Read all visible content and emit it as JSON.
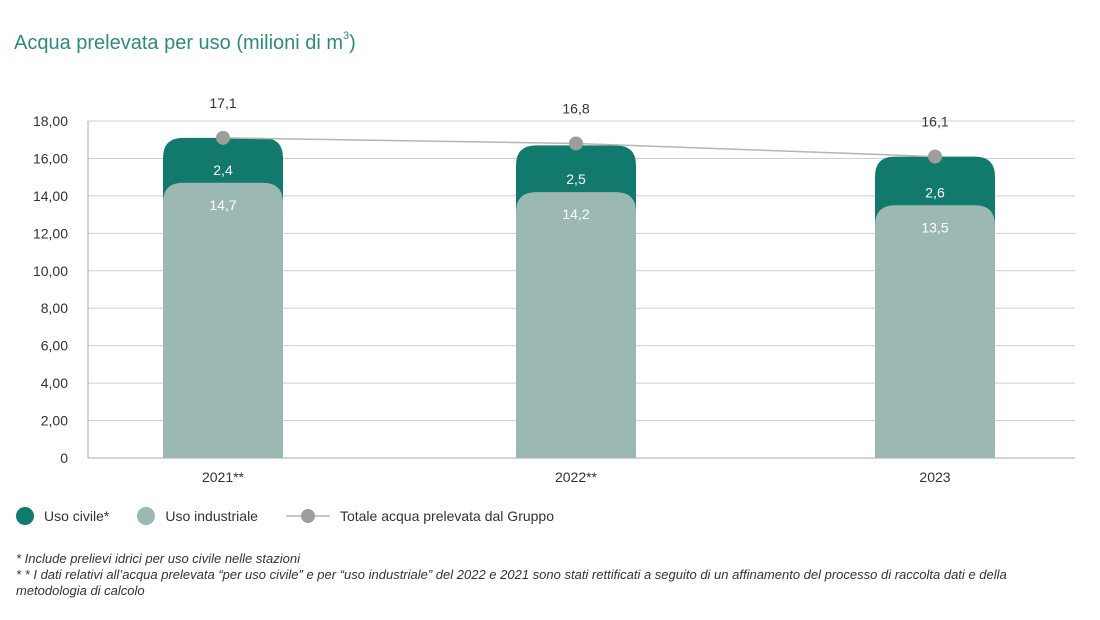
{
  "title": {
    "text": "Acqua prelevata per uso (milioni di m",
    "sup": "3",
    "close": ")"
  },
  "colors": {
    "civile": "#127a6d",
    "industriale": "#9bb9b2",
    "totale_line": "#b5b5b5",
    "totale_dot": "#9d9d9d",
    "grid": "#cfcfcf",
    "title": "#2e8a80"
  },
  "chart_data": {
    "type": "bar",
    "stacked": true,
    "categories": [
      "2021**",
      "2022**",
      "2023"
    ],
    "series": [
      {
        "name": "Uso industriale",
        "values": [
          14.7,
          14.2,
          13.5
        ],
        "labels": [
          "14,7",
          "14,2",
          "13,5"
        ]
      },
      {
        "name": "Uso civile*",
        "values": [
          2.4,
          2.5,
          2.6
        ],
        "labels": [
          "2,4",
          "2,5",
          "2,6"
        ]
      }
    ],
    "line_series": {
      "name": "Totale acqua prelevata dal Gruppo",
      "values": [
        17.1,
        16.8,
        16.1
      ],
      "labels": [
        "17,1",
        "16,8",
        "16,1"
      ]
    },
    "ylim": [
      0,
      18
    ],
    "yticks": [
      "0",
      "2,00",
      "4,00",
      "6,00",
      "8,00",
      "10,00",
      "12,00",
      "14,00",
      "16,00",
      "18,00"
    ],
    "grid": true,
    "legend_position": "bottom-left"
  },
  "legend": [
    {
      "label": "Uso civile*",
      "kind": "dot",
      "color": "#127a6d"
    },
    {
      "label": "Uso industriale",
      "kind": "dot",
      "color": "#9bb9b2"
    },
    {
      "label": "Totale acqua prelevata dal Gruppo",
      "kind": "line"
    }
  ],
  "footnotes": [
    "* Include prelievi idrici per uso civile nelle stazioni",
    "* * I dati relativi all’acqua prelevata “per uso civile” e per “uso industriale” del 2022 e 2021 sono stati rettificati a seguito di un affinamento del processo di raccolta dati e della metodologia di calcolo"
  ]
}
